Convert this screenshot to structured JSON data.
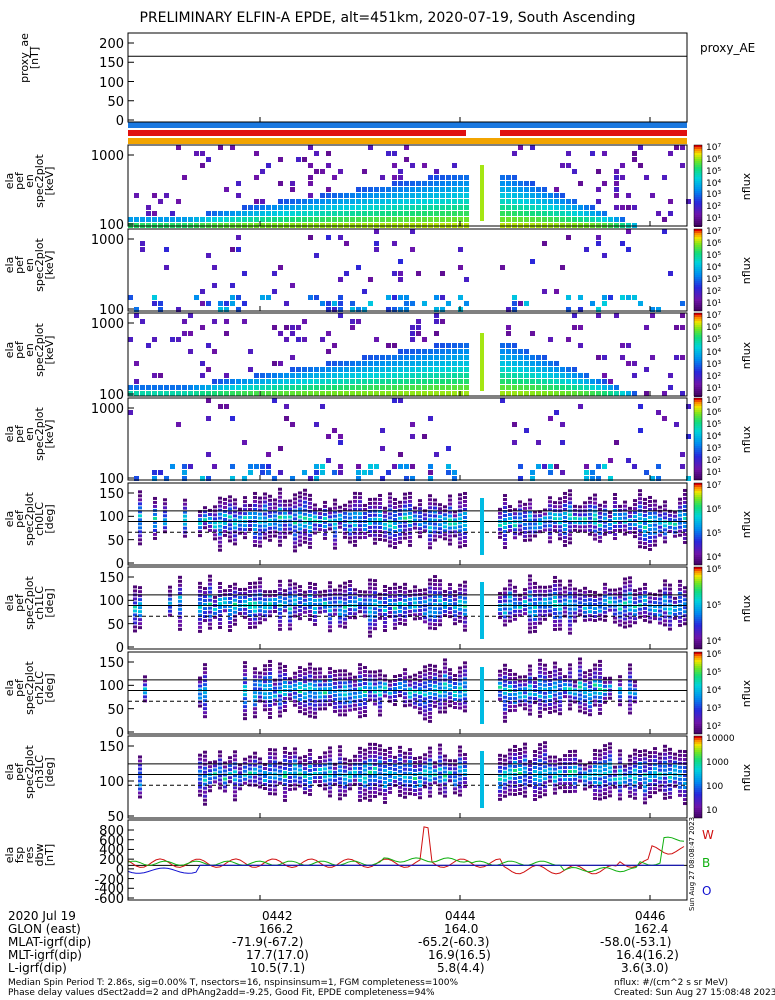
{
  "title": "PRELIMINARY ELFIN-A EPDE, alt=451km, 2020-07-19, South Ascending",
  "colors": {
    "bar_blue": "#1a78e0",
    "bar_red": "#e01010",
    "bar_orange": "#f2a400",
    "wave_red": "#d01010",
    "wave_green": "#10b010",
    "wave_blue": "#1010d0"
  },
  "panels": [
    {
      "id": "proxy_ae",
      "ylabel": [
        "proxy_ae",
        "[nT]"
      ],
      "yticks": [
        "200",
        "150",
        "100",
        "50",
        "0"
      ],
      "right_label": "proxy_AE"
    },
    {
      "id": "pef_en_1",
      "ylabel": [
        "ela",
        "pef",
        "en",
        "spec2plot",
        "[keV]"
      ],
      "yticks": [
        "1000",
        "100"
      ],
      "cbar_label": "nflux",
      "cbar_ticks": [
        "10⁷",
        "10⁶",
        "10⁵",
        "10⁴",
        "10³",
        "10²",
        "10¹"
      ]
    },
    {
      "id": "pef_en_2",
      "ylabel": [
        "ela",
        "pef",
        "en",
        "spec2plot",
        "[keV]"
      ],
      "yticks": [
        "1000",
        "100"
      ],
      "cbar_label": "nflux",
      "cbar_ticks": [
        "10⁷",
        "10⁶",
        "10⁵",
        "10⁴",
        "10³",
        "10²",
        "10¹"
      ]
    },
    {
      "id": "pef_en_3",
      "ylabel": [
        "ela",
        "pef",
        "en",
        "spec2plot",
        "[keV]"
      ],
      "yticks": [
        "1000",
        "100"
      ],
      "cbar_label": "nflux",
      "cbar_ticks": [
        "10⁷",
        "10⁶",
        "10⁵",
        "10⁴",
        "10³",
        "10²",
        "10¹"
      ]
    },
    {
      "id": "pef_en_4",
      "ylabel": [
        "ela",
        "pef",
        "en",
        "spec2plot",
        "[keV]"
      ],
      "yticks": [
        "1000",
        "100"
      ],
      "cbar_label": "nflux",
      "cbar_ticks": [
        "10⁷",
        "10⁶",
        "10⁵",
        "10⁴",
        "10³",
        "10²",
        "10¹"
      ]
    },
    {
      "id": "ch0LC",
      "ylabel": [
        "ela",
        "pef",
        "spec2plot",
        "ch0LC",
        "[deg]"
      ],
      "yticks": [
        "150",
        "100",
        "50",
        "0"
      ],
      "cbar_label": "nflux",
      "cbar_ticks": [
        "10⁷",
        "10⁶",
        "10⁵",
        "10⁴"
      ]
    },
    {
      "id": "ch1LC",
      "ylabel": [
        "ela",
        "pef",
        "spec2plot",
        "ch1LC",
        "[deg]"
      ],
      "yticks": [
        "150",
        "100",
        "50",
        "0"
      ],
      "cbar_label": "nflux",
      "cbar_ticks": [
        "10⁶",
        "10⁵",
        "10⁴"
      ]
    },
    {
      "id": "ch2LC",
      "ylabel": [
        "ela",
        "pef",
        "spec2plot",
        "ch2LC",
        "[deg]"
      ],
      "yticks": [
        "150",
        "100",
        "50",
        "0"
      ],
      "cbar_label": "nflux",
      "cbar_ticks": [
        "10⁶",
        "10⁵",
        "10⁴",
        "10³",
        "10²"
      ]
    },
    {
      "id": "ch3LC",
      "ylabel": [
        "ela",
        "pef",
        "spec2plot",
        "ch3LC",
        "[deg]"
      ],
      "yticks": [
        "150",
        "100",
        "50"
      ],
      "cbar_label": "nflux",
      "cbar_ticks": [
        "10000",
        "1000",
        "100",
        "10"
      ]
    },
    {
      "id": "fsp_res",
      "ylabel": [
        "ela",
        "fsp",
        "res",
        "dbw",
        "[nT]"
      ],
      "yticks": [
        "800",
        "600",
        "400",
        "200",
        "0",
        "-200",
        "-400",
        "-600"
      ],
      "right_labels": [
        "W",
        "B",
        "O"
      ],
      "side_note": "Sun Aug 27 08:08:47 2023"
    }
  ],
  "footer": {
    "date": "2020 Jul 19",
    "rows": [
      {
        "label": "GLON (east)",
        "v1": "166.2",
        "v2": "164.0",
        "v3": "162.4"
      },
      {
        "label": "MLAT-igrf(dip)",
        "v1": "-71.9(-67.2)",
        "v2": "-65.2(-60.3)",
        "v3": "-58.0(-53.1)"
      },
      {
        "label": "MLT-igrf(dip)",
        "v1": "17.7(17.0)",
        "v2": "16.9(16.5)",
        "v3": "16.4(16.2)"
      },
      {
        "label": "L-igrf(dip)",
        "v1": "10.5(7.1)",
        "v2": "5.8(4.4)",
        "v3": "3.6(3.0)"
      }
    ],
    "times": [
      "0442",
      "0444",
      "0446"
    ],
    "note_left_1": "Median Spin Period T: 2.86s, sig=0.00% T, nsectors=16, nspinsinsum=1, FGM completeness=100%",
    "note_left_2": "Phase delay values dSect2add=2 and dPhAng2add=-9.25, Good Fit, EPDE completeness=94%",
    "note_right_1": "nflux: #/(cm^2 s sr MeV)",
    "note_right_2": "Created: Sun Aug 27 15:08:48 2023"
  },
  "chart_data": {
    "type": "heatmap",
    "title": "PRELIMINARY ELFIN-A EPDE, alt=451km, 2020-07-19, South Ascending",
    "x_ticks": [
      "0442",
      "0444",
      "0446"
    ],
    "panels_summary": [
      {
        "name": "proxy_ae",
        "type": "line",
        "ylim": [
          0,
          200
        ],
        "reference_line": 155
      },
      {
        "name": "spec2plot energy spectrograms",
        "ylog": true,
        "ylim": [
          60,
          7000
        ],
        "ylabel": "[keV]"
      },
      {
        "name": "pitch-angle spectrograms ch0LC-ch3LC",
        "ylim": [
          0,
          180
        ],
        "ylabel": "[deg]",
        "reference_lines": [
          112,
          90,
          68
        ]
      },
      {
        "name": "fsp res dbw",
        "type": "line",
        "ylim": [
          -650,
          850
        ],
        "series": [
          {
            "name": "W"
          },
          {
            "name": "B"
          },
          {
            "name": "O"
          }
        ]
      }
    ]
  }
}
